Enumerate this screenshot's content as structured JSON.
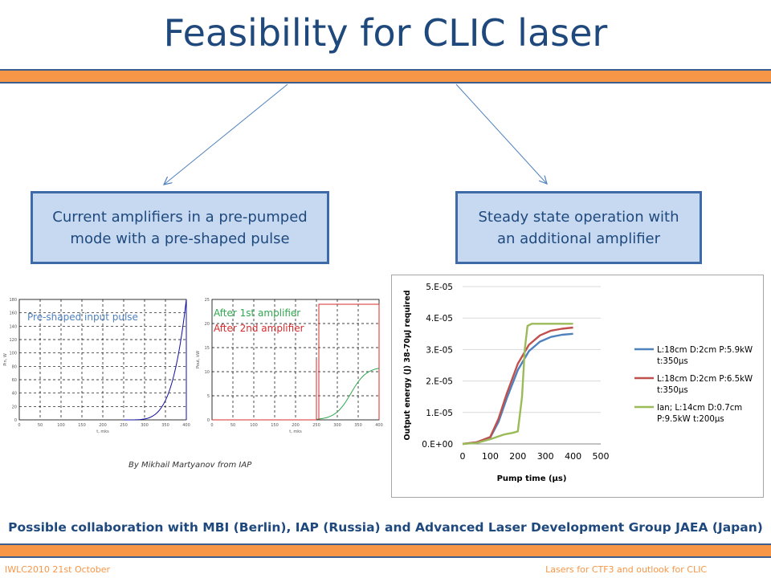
{
  "slide": {
    "title": "Feasibility for CLIC laser",
    "box_left": "Current amplifiers in a pre-pumped mode with a pre-shaped pulse",
    "box_right": "Steady state operation with an additional amplifier",
    "credit": "By Mikhail Martyanov from IAP",
    "collaboration": "Possible collaboration with MBI (Berlin), IAP (Russia) and Advanced Laser Development Group JAEA (Japan)",
    "footer_left": "IWLC2010 21st October",
    "footer_right": "Lasers for CTF3 and outlook for CLIC",
    "colors": {
      "title": "#1f497d",
      "bar": "#f79646",
      "box_fill": "#c6d9f1",
      "box_border": "#3e6aa8"
    }
  },
  "mini_plot_left": {
    "label": "Pre-shaped input pulse",
    "label_color": "#4f81bd",
    "xlabel": "t, mks",
    "ylabel": "Pin, W",
    "x_ticks": [
      "0",
      "50",
      "100",
      "150",
      "200",
      "250",
      "300",
      "350",
      "400"
    ],
    "y_ticks": [
      "0",
      "20",
      "40",
      "60",
      "80",
      "100",
      "120",
      "140",
      "160",
      "180"
    ]
  },
  "mini_plot_right": {
    "label_1": "After 1st amplifier",
    "label_1_color": "#2fa84f",
    "label_2": "After 2nd amplifier",
    "label_2_color": "#d92b2b",
    "xlabel": "t, mks",
    "ylabel": "Pout, kW",
    "x_ticks": [
      "0",
      "50",
      "100",
      "150",
      "200",
      "250",
      "300",
      "350",
      "400"
    ],
    "y_ticks": [
      "0",
      "5",
      "10",
      "15",
      "20",
      "25"
    ]
  },
  "chart_data": {
    "type": "line",
    "xlabel": "Pump time (µs)",
    "ylabel": "Output energy (J) 38-70µJ required",
    "xlim": [
      0,
      500
    ],
    "ylim": [
      0,
      5e-05
    ],
    "x_ticks": [
      "0",
      "100",
      "200",
      "300",
      "400",
      "500"
    ],
    "y_ticks": [
      "0.E+00",
      "1.E-05",
      "2.E-05",
      "3.E-05",
      "4.E-05",
      "5.E-05"
    ],
    "grid": "horizontal",
    "legend": "right",
    "series": [
      {
        "name": "L:18cm D:2cm P:5.9kW t:350µs",
        "legend_lines": [
          "L:18cm D:2cm P:5.9kW",
          "t:350µs"
        ],
        "color": "#4f81bd",
        "x": [
          0,
          50,
          100,
          130,
          160,
          200,
          240,
          280,
          320,
          360,
          400
        ],
        "y": [
          0,
          5e-07,
          2e-06,
          7e-06,
          1.45e-05,
          2.35e-05,
          2.95e-05,
          3.25e-05,
          3.4e-05,
          3.47e-05,
          3.5e-05
        ]
      },
      {
        "name": "L:18cm D:2cm P:6.5kW t:350µs",
        "legend_lines": [
          "L:18cm D:2cm P:6.5kW",
          "t:350µs"
        ],
        "color": "#c0504d",
        "x": [
          0,
          50,
          100,
          130,
          160,
          200,
          240,
          280,
          320,
          360,
          400
        ],
        "y": [
          0,
          5e-07,
          2.2e-06,
          8e-06,
          1.6e-05,
          2.55e-05,
          3.15e-05,
          3.45e-05,
          3.6e-05,
          3.66e-05,
          3.7e-05
        ]
      },
      {
        "name": "Ian; L:14cm D:0.7cm P:9.5kW t:200µs",
        "legend_lines": [
          "Ian; L:14cm D:0.7cm",
          "P:9.5kW t:200µs"
        ],
        "color": "#9bbb59",
        "x": [
          0,
          50,
          100,
          150,
          180,
          200,
          215,
          225,
          235,
          250,
          300,
          400
        ],
        "y": [
          0,
          3e-07,
          1.5e-06,
          3e-06,
          3.5e-06,
          4e-06,
          1.5e-05,
          3e-05,
          3.75e-05,
          3.82e-05,
          3.82e-05,
          3.82e-05
        ]
      }
    ]
  }
}
